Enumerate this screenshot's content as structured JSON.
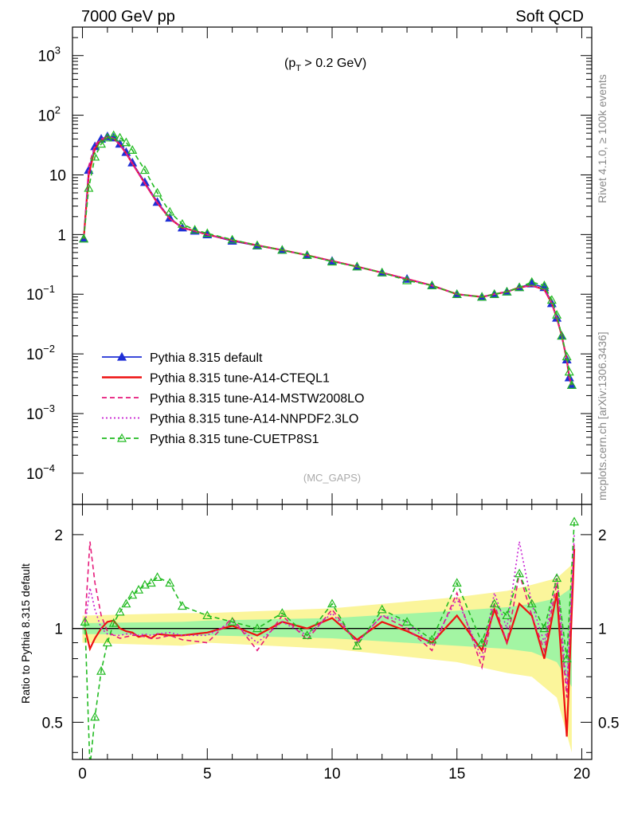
{
  "header": {
    "left": "7000 GeV pp",
    "right": "Soft QCD",
    "annotation": "(p",
    "annotation_sub": "T",
    "annotation_rest": " > 0.2 GeV)",
    "watermark": "(MC_GAPS)",
    "side_top": "Rivet 4.1.0, ≥ 100k events",
    "side_bottom": "mcplots.cern.ch [arXiv:1306.3436]"
  },
  "chart_data": [
    {
      "type": "line",
      "panel": "main",
      "yscale": "log",
      "xlim": [
        -0.4,
        20.4
      ],
      "ylim": [
        3e-05,
        3000
      ],
      "ytick_labels": [
        {
          "v": 1000,
          "base": "10",
          "exp": "3"
        },
        {
          "v": 100,
          "base": "10",
          "exp": "2"
        },
        {
          "v": 10,
          "base": "10",
          "exp": ""
        },
        {
          "v": 1,
          "base": "1",
          "exp": ""
        },
        {
          "v": 0.1,
          "base": "10",
          "exp": "−1"
        },
        {
          "v": 0.01,
          "base": "10",
          "exp": "−2"
        },
        {
          "v": 0.001,
          "base": "10",
          "exp": "−3"
        },
        {
          "v": 0.0001,
          "base": "10",
          "exp": "−4"
        }
      ],
      "x": [
        0.05,
        0.25,
        0.5,
        0.75,
        1.0,
        1.25,
        1.5,
        1.75,
        2.0,
        2.5,
        3.0,
        3.5,
        4.0,
        4.5,
        5.0,
        6.0,
        7.0,
        8.0,
        9.0,
        10.0,
        11.0,
        12.0,
        13.0,
        14.0,
        15.0,
        16.0,
        16.5,
        17.0,
        17.5,
        18.0,
        18.5,
        18.8,
        19.0,
        19.2,
        19.4,
        19.5,
        19.6
      ],
      "series": [
        {
          "name": "Pythia 8.315 default",
          "color": "#1f2fd6",
          "style": "solid",
          "marker": "triangle-filled",
          "values": [
            0.85,
            12,
            30,
            40,
            44,
            42,
            33,
            24,
            16,
            7.5,
            3.5,
            1.9,
            1.3,
            1.15,
            1.0,
            0.78,
            0.65,
            0.55,
            0.45,
            0.36,
            0.29,
            0.23,
            0.18,
            0.14,
            0.1,
            0.09,
            0.1,
            0.11,
            0.13,
            0.15,
            0.13,
            0.07,
            0.04,
            0.02,
            0.008,
            0.004,
            0.003
          ]
        },
        {
          "name": "Pythia 8.315 tune-A14-CTEQL1",
          "color": "#ee1111",
          "style": "solid",
          "marker": "none",
          "values": [
            0.85,
            10,
            28,
            38,
            43,
            41,
            32,
            23,
            15.5,
            7.2,
            3.4,
            1.85,
            1.3,
            1.15,
            1.0,
            0.8,
            0.66,
            0.55,
            0.45,
            0.36,
            0.29,
            0.23,
            0.18,
            0.14,
            0.1,
            0.09,
            0.1,
            0.11,
            0.13,
            0.14,
            0.12,
            0.07,
            0.04,
            0.02,
            0.008,
            0.004,
            0.003
          ]
        },
        {
          "name": "Pythia 8.315 tune-A14-MSTW2008LO",
          "color": "#e6197a",
          "style": "dashed",
          "marker": "none",
          "values": [
            0.85,
            14,
            32,
            40,
            44,
            41,
            32,
            23,
            15.5,
            7.2,
            3.4,
            1.85,
            1.3,
            1.15,
            1.0,
            0.8,
            0.66,
            0.55,
            0.45,
            0.36,
            0.29,
            0.23,
            0.18,
            0.14,
            0.1,
            0.09,
            0.1,
            0.11,
            0.13,
            0.14,
            0.12,
            0.07,
            0.04,
            0.02,
            0.008,
            0.004,
            0.003
          ]
        },
        {
          "name": "Pythia 8.315 tune-A14-NNPDF2.3LO",
          "color": "#c81ed2",
          "style": "dotted",
          "marker": "none",
          "values": [
            0.85,
            12,
            30,
            39,
            43,
            41,
            32,
            23,
            15.5,
            7.2,
            3.4,
            1.85,
            1.3,
            1.15,
            1.0,
            0.8,
            0.66,
            0.55,
            0.45,
            0.36,
            0.29,
            0.23,
            0.18,
            0.14,
            0.1,
            0.09,
            0.1,
            0.11,
            0.13,
            0.14,
            0.12,
            0.07,
            0.04,
            0.02,
            0.008,
            0.004,
            0.003
          ]
        },
        {
          "name": "Pythia 8.315 tune-CUETP8S1",
          "color": "#22bb22",
          "style": "dashed",
          "marker": "triangle-open",
          "values": [
            0.85,
            6,
            20,
            33,
            42,
            46,
            42,
            35,
            26,
            12,
            5.0,
            2.4,
            1.5,
            1.2,
            1.05,
            0.82,
            0.66,
            0.55,
            0.45,
            0.35,
            0.29,
            0.23,
            0.17,
            0.14,
            0.1,
            0.09,
            0.1,
            0.11,
            0.13,
            0.16,
            0.14,
            0.08,
            0.045,
            0.02,
            0.009,
            0.005,
            0.003
          ]
        }
      ]
    },
    {
      "type": "line",
      "panel": "ratio",
      "yscale": "log",
      "ylabel": "Ratio to Pythia 8.315 default",
      "xlim": [
        -0.4,
        20.4
      ],
      "ylim": [
        0.38,
        2.5
      ],
      "ytick_labels": [
        {
          "v": 2,
          "label": "2"
        },
        {
          "v": 1,
          "label": "1"
        },
        {
          "v": 0.5,
          "label": "0.5"
        }
      ],
      "xtick_labels": [
        {
          "v": 0,
          "label": "0"
        },
        {
          "v": 5,
          "label": "5"
        },
        {
          "v": 10,
          "label": "10"
        },
        {
          "v": 15,
          "label": "15"
        },
        {
          "v": 20,
          "label": "20"
        }
      ],
      "reference": 1,
      "band_yellow": {
        "x": [
          0,
          4,
          5,
          10,
          15,
          17,
          18,
          19,
          19.6
        ],
        "lo": [
          0.9,
          0.88,
          0.9,
          0.86,
          0.78,
          0.72,
          0.7,
          0.6,
          0.4
        ],
        "hi": [
          1.1,
          1.12,
          1.12,
          1.16,
          1.26,
          1.32,
          1.38,
          1.45,
          1.6
        ]
      },
      "band_green": {
        "x": [
          0,
          4,
          5,
          10,
          15,
          17,
          18,
          19,
          19.6
        ],
        "lo": [
          0.96,
          0.95,
          0.95,
          0.93,
          0.88,
          0.86,
          0.84,
          0.78,
          0.65
        ],
        "hi": [
          1.04,
          1.05,
          1.06,
          1.08,
          1.14,
          1.17,
          1.2,
          1.25,
          1.35
        ]
      },
      "x": [
        0.1,
        0.3,
        0.5,
        0.75,
        1.0,
        1.25,
        1.5,
        1.75,
        2.0,
        2.25,
        2.5,
        2.75,
        3.0,
        3.5,
        4.0,
        5.0,
        6.0,
        7.0,
        8.0,
        9.0,
        10.0,
        11.0,
        12.0,
        13.0,
        14.0,
        15.0,
        16.0,
        16.5,
        17.0,
        17.5,
        18.0,
        18.5,
        19.0,
        19.4,
        19.7
      ],
      "series": [
        {
          "name": "Pythia 8.315 tune-A14-CTEQL1",
          "color": "#ee1111",
          "style": "solid",
          "marker": "none",
          "values": [
            1.0,
            0.86,
            0.93,
            1.0,
            1.05,
            1.06,
            1.0,
            0.98,
            0.97,
            0.94,
            0.95,
            0.93,
            0.96,
            0.95,
            0.95,
            0.97,
            1.02,
            0.95,
            1.05,
            1.0,
            1.08,
            0.92,
            1.05,
            0.98,
            0.9,
            1.1,
            0.85,
            1.15,
            0.9,
            1.2,
            1.1,
            0.8,
            1.3,
            0.45,
            1.8
          ]
        },
        {
          "name": "Pythia 8.315 tune-A14-MSTW2008LO",
          "color": "#e6197a",
          "style": "dashed",
          "marker": "none",
          "values": [
            1.05,
            1.9,
            1.4,
            1.1,
            0.98,
            0.95,
            0.93,
            0.94,
            0.95,
            0.95,
            0.94,
            0.93,
            0.93,
            0.95,
            0.92,
            0.9,
            1.08,
            0.85,
            1.1,
            0.92,
            1.15,
            0.9,
            1.1,
            1.0,
            0.85,
            1.3,
            0.75,
            1.2,
            0.9,
            1.5,
            1.1,
            0.85,
            1.4,
            0.6,
            1.9
          ]
        },
        {
          "name": "Pythia 8.315 tune-A14-NNPDF2.3LO",
          "color": "#c81ed2",
          "style": "dotted",
          "marker": "none",
          "values": [
            1.02,
            1.35,
            1.15,
            1.0,
            0.96,
            0.95,
            0.95,
            0.96,
            0.96,
            0.95,
            0.96,
            0.95,
            0.96,
            0.97,
            0.95,
            0.95,
            1.05,
            0.9,
            1.05,
            0.95,
            1.12,
            0.9,
            1.1,
            1.05,
            0.88,
            1.25,
            0.8,
            1.3,
            1.0,
            1.9,
            1.2,
            0.9,
            1.5,
            0.65,
            2.0
          ]
        },
        {
          "name": "Pythia 8.315 tune-CUETP8S1",
          "color": "#22bb22",
          "style": "dashed",
          "marker": "triangle-open",
          "values": [
            1.05,
            0.36,
            0.52,
            0.73,
            0.9,
            1.04,
            1.13,
            1.2,
            1.28,
            1.33,
            1.38,
            1.4,
            1.46,
            1.4,
            1.18,
            1.1,
            1.05,
            1.0,
            1.12,
            0.95,
            1.2,
            0.88,
            1.15,
            1.05,
            0.92,
            1.4,
            0.9,
            1.2,
            1.1,
            1.5,
            1.2,
            1.0,
            1.45,
            0.8,
            2.2
          ]
        }
      ]
    }
  ]
}
